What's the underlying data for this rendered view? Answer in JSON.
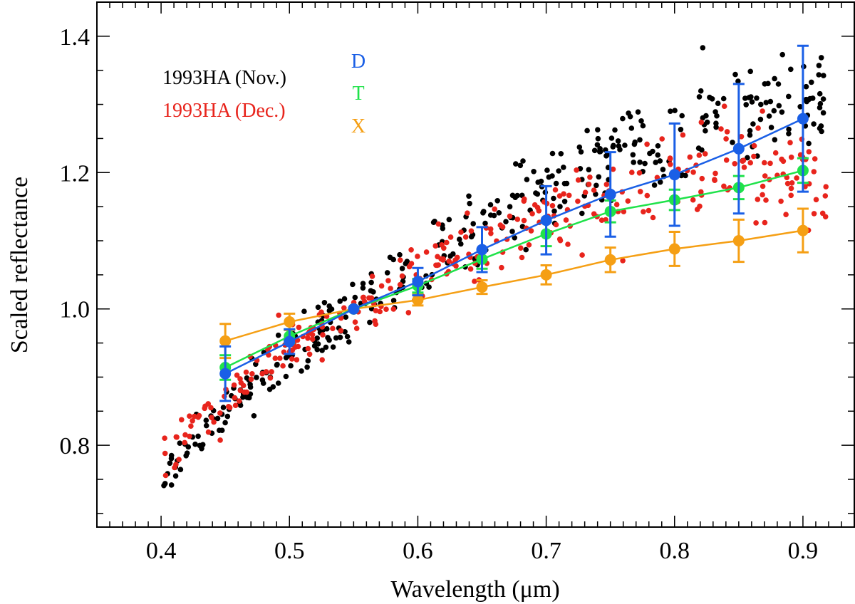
{
  "chart_data": {
    "type": "scatter",
    "xlabel": "Wavelength (μm)",
    "ylabel": "Scaled reflectance",
    "xlim": [
      0.35,
      0.94
    ],
    "ylim": [
      0.68,
      1.45
    ],
    "xticks": [
      0.4,
      0.5,
      0.6,
      0.7,
      0.8,
      0.9
    ],
    "xtick_labels": [
      "0.4",
      "0.5",
      "0.6",
      "0.7",
      "0.8",
      "0.9"
    ],
    "yticks": [
      0.8,
      1.0,
      1.2,
      1.4
    ],
    "ytick_labels": [
      "0.8",
      "1.0",
      "1.2",
      "1.4"
    ],
    "scatter_series": [
      {
        "name": "1993HA (Nov.)",
        "color": "#000000",
        "count": 380,
        "trend": "nov"
      },
      {
        "name": "1993HA (Dec.)",
        "color": "#e8241c",
        "count": 330,
        "trend": "dec"
      }
    ],
    "class_series": [
      {
        "name": "D",
        "color": "#1a5fe6",
        "x": [
          0.45,
          0.5,
          0.55,
          0.6,
          0.65,
          0.7,
          0.75,
          0.8,
          0.85,
          0.9
        ],
        "y": [
          0.905,
          0.952,
          1.0,
          1.04,
          1.087,
          1.13,
          1.168,
          1.197,
          1.235,
          1.279
        ],
        "err": [
          0.04,
          0.018,
          0.0,
          0.02,
          0.033,
          0.05,
          0.062,
          0.075,
          0.095,
          0.107
        ]
      },
      {
        "name": "T",
        "color": "#1fe24a",
        "x": [
          0.45,
          0.5,
          0.55,
          0.6,
          0.65,
          0.7,
          0.75,
          0.8,
          0.85,
          0.9
        ],
        "y": [
          0.914,
          0.96,
          1.0,
          1.034,
          1.073,
          1.11,
          1.143,
          1.16,
          1.178,
          1.203
        ],
        "err": [
          0.018,
          0.01,
          0.0,
          0.01,
          0.014,
          0.018,
          0.016,
          0.015,
          0.017,
          0.018
        ]
      },
      {
        "name": "X",
        "color": "#f59f14",
        "x": [
          0.45,
          0.5,
          0.55,
          0.6,
          0.65,
          0.7,
          0.75,
          0.8,
          0.85,
          0.9
        ],
        "y": [
          0.953,
          0.981,
          1.0,
          1.013,
          1.032,
          1.05,
          1.072,
          1.088,
          1.1,
          1.115
        ],
        "err": [
          0.025,
          0.012,
          0.0,
          0.008,
          0.01,
          0.014,
          0.018,
          0.025,
          0.031,
          0.032
        ]
      }
    ]
  }
}
